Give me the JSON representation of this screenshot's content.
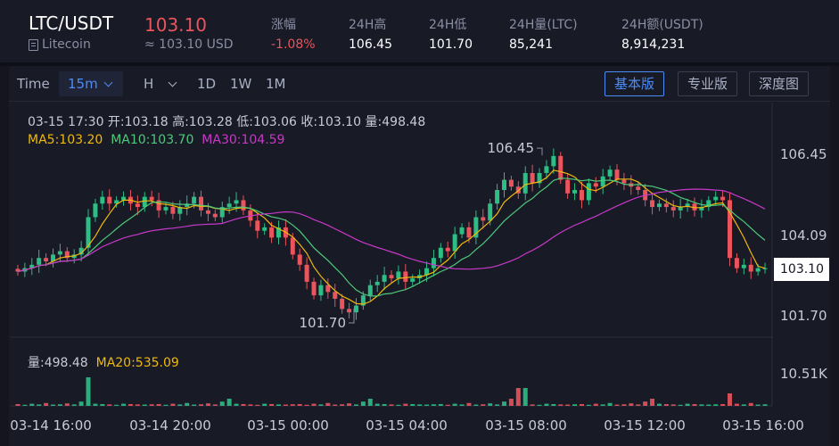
{
  "header": {
    "pair": "LTC/USDT",
    "coin_name": "Litecoin",
    "coin_icon": "document-icon",
    "last_price": "103.10",
    "last_price_usd": "≈ 103.10 USD",
    "stats": [
      {
        "label": "涨幅",
        "value": "-1.08%",
        "tone": "negative"
      },
      {
        "label": "24H高",
        "value": "106.45"
      },
      {
        "label": "24H低",
        "value": "101.70"
      },
      {
        "label": "24H量(LTC)",
        "value": "85,241"
      },
      {
        "label": "24H额(USDT)",
        "value": "8,914,231"
      }
    ]
  },
  "toolbar": {
    "time_label": "Time",
    "interval": "15m",
    "hour_label": "H",
    "periods": [
      "1D",
      "1W",
      "1M"
    ],
    "views": [
      "基本版",
      "专业版",
      "深度图"
    ],
    "active_view": "基本版"
  },
  "legend": {
    "ohlc": "03-15 17:30  开:103.18  高:103.28  低:103.06  收:103.10  量:498.48",
    "ma5": "MA5:103.20",
    "ma10": "MA10:103.70",
    "ma30": "MA30:104.59",
    "vol": "量:498.48",
    "vol_ma20": "MA20:535.09"
  },
  "colors": {
    "up": "#2ebd85",
    "down": "#e9545d",
    "ma5": "#f0b90b",
    "ma10": "#4ec97a",
    "ma30": "#c838c8",
    "accent": "#4c8cf5"
  },
  "chart_data": {
    "type": "candlestick",
    "y_axis_ticks": [
      "106.45",
      "104.09",
      "101.70"
    ],
    "current_price": "103.10",
    "volume_axis_tick": "10.51K",
    "x_axis_ticks": [
      "03-14 16:00",
      "03-14 20:00",
      "03-15 00:00",
      "03-15 04:00",
      "03-15 08:00",
      "03-15 12:00",
      "03-15 16:00"
    ],
    "high_marker": "106.45",
    "low_marker": "101.70",
    "close_series": [
      103.0,
      103.1,
      103.2,
      103.4,
      103.3,
      103.5,
      103.6,
      103.4,
      103.5,
      103.7,
      104.6,
      105.0,
      105.2,
      105.0,
      105.1,
      105.2,
      105.0,
      104.9,
      105.2,
      105.1,
      104.8,
      104.9,
      104.7,
      104.9,
      105.0,
      105.2,
      104.8,
      104.7,
      104.6,
      104.9,
      105.0,
      105.1,
      104.8,
      104.5,
      104.2,
      104.3,
      104.0,
      104.3,
      104.0,
      103.5,
      103.2,
      102.7,
      102.3,
      102.6,
      102.4,
      102.2,
      101.9,
      101.8,
      102.0,
      102.3,
      102.6,
      102.7,
      102.9,
      102.8,
      103.0,
      102.7,
      102.8,
      102.9,
      103.1,
      103.4,
      103.7,
      103.6,
      104.1,
      104.3,
      104.0,
      104.6,
      104.5,
      105.0,
      105.4,
      105.7,
      105.5,
      105.3,
      105.9,
      105.6,
      105.9,
      106.1,
      106.4,
      105.7,
      105.3,
      105.4,
      105.1,
      105.6,
      105.5,
      105.8,
      106.0,
      105.7,
      105.6,
      105.5,
      105.4,
      105.1,
      104.9,
      105.0,
      104.9,
      104.8,
      104.9,
      105.0,
      104.8,
      104.9,
      105.1,
      105.2,
      105.1,
      103.4,
      103.1,
      103.2,
      103.0,
      103.1,
      103.1
    ]
  }
}
